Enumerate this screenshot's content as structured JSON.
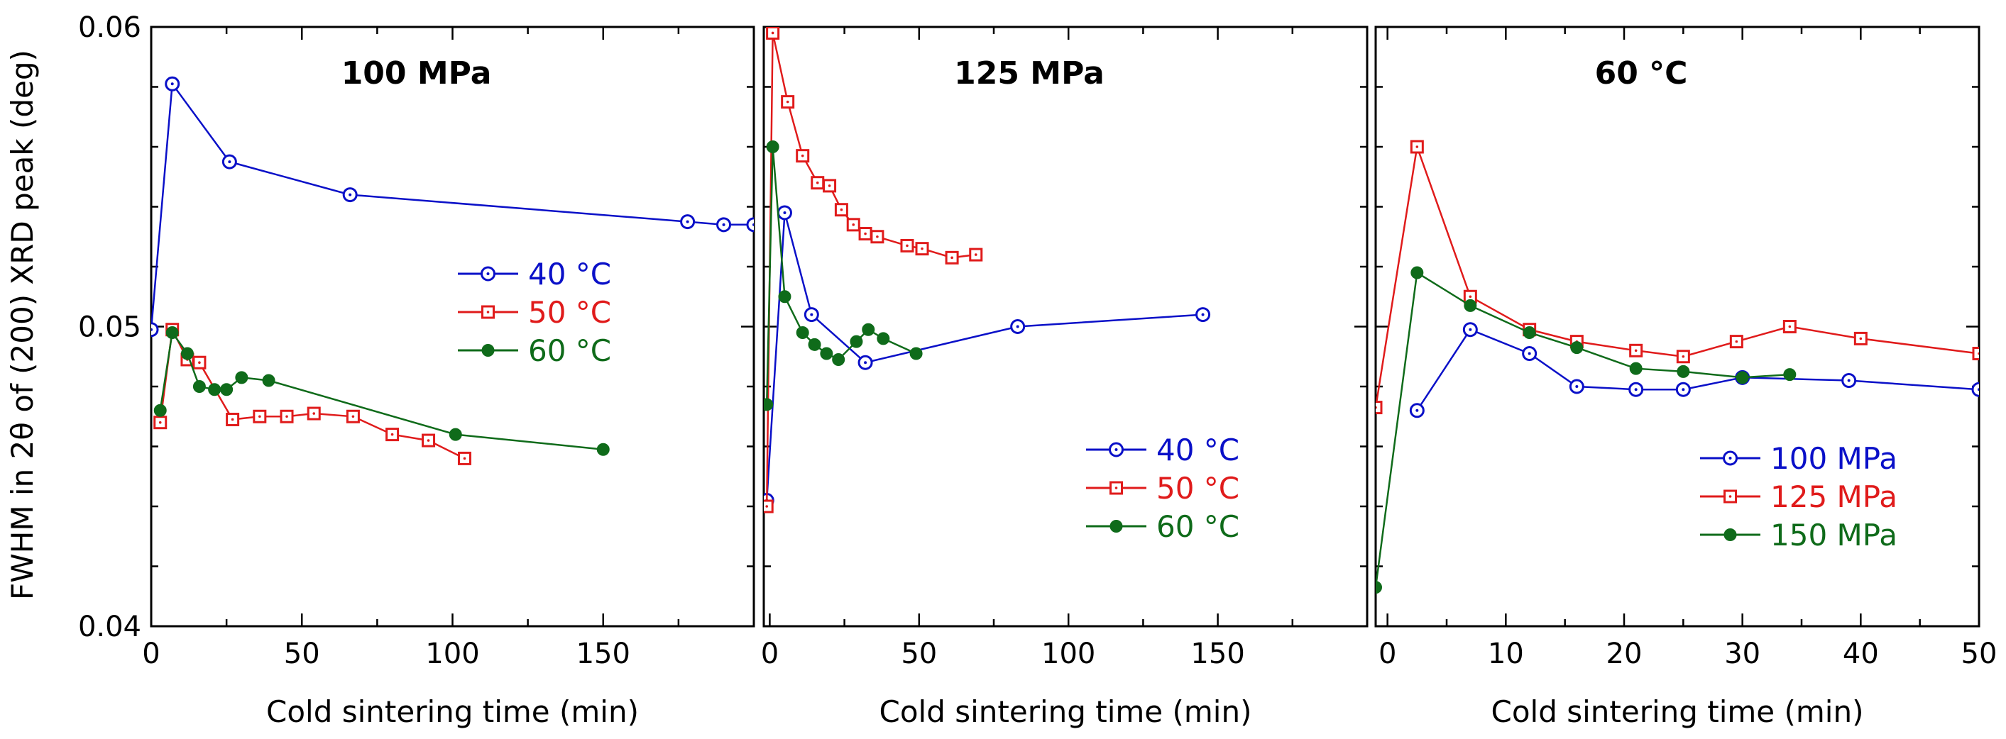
{
  "figure": {
    "ylabel": "FWHM in 2θ of (200) XRD peak (deg)",
    "ylim": [
      0.04,
      0.06
    ],
    "yticks": [
      0.04,
      0.05,
      0.06
    ],
    "ytick_labels": [
      "0.04",
      "0.05",
      "0.06"
    ],
    "xlabel": "Cold sintering time (min)"
  },
  "chart_data": [
    {
      "type": "line",
      "title": "100 MPa",
      "xlabel": "Cold sintering time (min)",
      "xlim": [
        0,
        200
      ],
      "xticks": [
        0,
        50,
        100,
        150
      ],
      "xtick_labels": [
        "0",
        "50",
        "100",
        "150"
      ],
      "ylim": [
        0.04,
        0.06
      ],
      "legend_position": "middle-right",
      "series": [
        {
          "name": "40 °C",
          "color": "#0a10c8",
          "marker": "circle-open",
          "x": [
            0,
            7,
            26,
            66,
            178,
            190,
            200
          ],
          "y": [
            0.0499,
            0.0581,
            0.0555,
            0.0544,
            0.0535,
            0.0534,
            0.0534
          ]
        },
        {
          "name": "50 °C",
          "color": "#e01b1b",
          "marker": "square-open",
          "x": [
            3,
            7,
            12,
            16,
            27,
            36,
            45,
            54,
            67,
            80,
            92,
            104
          ],
          "y": [
            0.0468,
            0.0499,
            0.0489,
            0.0488,
            0.0469,
            0.047,
            0.047,
            0.0471,
            0.047,
            0.0464,
            0.0462,
            0.0456
          ]
        },
        {
          "name": "60 °C",
          "color": "#0f6b1a",
          "marker": "circle-filled",
          "x": [
            3,
            7,
            12,
            16,
            21,
            25,
            30,
            39,
            101,
            150
          ],
          "y": [
            0.0472,
            0.0498,
            0.0491,
            0.048,
            0.0479,
            0.0479,
            0.0483,
            0.0482,
            0.0464,
            0.0459
          ]
        }
      ]
    },
    {
      "type": "line",
      "title": "125 MPa",
      "xlabel": "Cold sintering time (min)",
      "xlim": [
        -2,
        200
      ],
      "xticks": [
        0,
        50,
        100,
        150
      ],
      "xtick_labels": [
        "0",
        "50",
        "100",
        "150"
      ],
      "ylim": [
        0.04,
        0.06
      ],
      "legend_position": "bottom-right",
      "series": [
        {
          "name": "40 °C",
          "color": "#0a10c8",
          "marker": "circle-open",
          "x": [
            -1,
            5,
            14,
            32,
            83,
            145
          ],
          "y": [
            0.0442,
            0.0538,
            0.0504,
            0.0488,
            0.05,
            0.0504
          ]
        },
        {
          "name": "50 °C",
          "color": "#e01b1b",
          "marker": "square-open",
          "x": [
            -1,
            1,
            6,
            11,
            16,
            20,
            24,
            28,
            32,
            36,
            46,
            51,
            61,
            69
          ],
          "y": [
            0.044,
            0.0598,
            0.0575,
            0.0557,
            0.0548,
            0.0547,
            0.0539,
            0.0534,
            0.0531,
            0.053,
            0.0527,
            0.0526,
            0.0523,
            0.0524
          ]
        },
        {
          "name": "60 °C",
          "color": "#0f6b1a",
          "marker": "circle-filled",
          "x": [
            -1,
            1,
            5,
            11,
            15,
            19,
            23,
            29,
            33,
            38,
            49
          ],
          "y": [
            0.0474,
            0.056,
            0.051,
            0.0498,
            0.0494,
            0.0491,
            0.0489,
            0.0495,
            0.0499,
            0.0496,
            0.0491
          ]
        }
      ]
    },
    {
      "type": "line",
      "title": "60 °C",
      "xlabel": "Cold sintering time (min)",
      "xlim": [
        -1,
        50
      ],
      "xticks": [
        0,
        10,
        20,
        30,
        40,
        50
      ],
      "xtick_labels": [
        "0",
        "10",
        "20",
        "30",
        "40",
        "50"
      ],
      "ylim": [
        0.04,
        0.06
      ],
      "legend_position": "bottom-right",
      "series": [
        {
          "name": "100 MPa",
          "color": "#0a10c8",
          "marker": "circle-open",
          "x": [
            2.5,
            7,
            12,
            16,
            21,
            25,
            30,
            39,
            50
          ],
          "y": [
            0.0472,
            0.0499,
            0.0491,
            0.048,
            0.0479,
            0.0479,
            0.0483,
            0.0482,
            0.0479
          ]
        },
        {
          "name": "125 MPa",
          "color": "#e01b1b",
          "marker": "square-open",
          "x": [
            -1,
            2.5,
            7,
            12,
            16,
            21,
            25,
            29.5,
            34,
            40,
            50
          ],
          "y": [
            0.0473,
            0.056,
            0.051,
            0.0499,
            0.0495,
            0.0492,
            0.049,
            0.0495,
            0.05,
            0.0496,
            0.0491
          ]
        },
        {
          "name": "150 MPa",
          "color": "#0f6b1a",
          "marker": "circle-filled",
          "x": [
            -1,
            2.5,
            7,
            12,
            16,
            21,
            25,
            30,
            34
          ],
          "y": [
            0.0413,
            0.0518,
            0.0507,
            0.0498,
            0.0493,
            0.0486,
            0.0485,
            0.0483,
            0.0484
          ]
        }
      ]
    }
  ]
}
